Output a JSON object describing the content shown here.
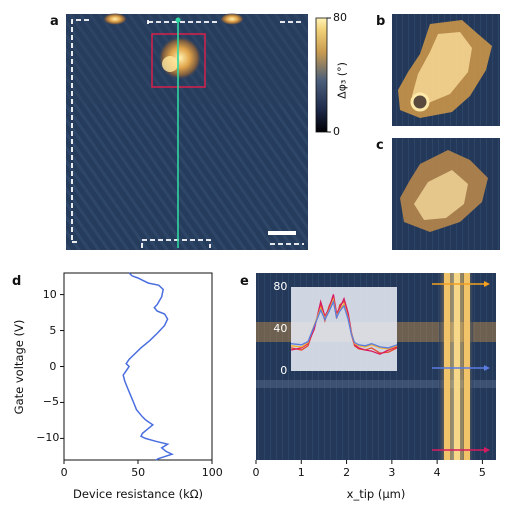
{
  "panels": {
    "a": "a",
    "b": "b",
    "c": "c",
    "d": "d",
    "e": "e"
  },
  "colorbar": {
    "max_label": "80",
    "min_label": "0",
    "label": "Δφ₃ (°)"
  },
  "chart_data": [
    {
      "panel": "d",
      "type": "line",
      "xlabel": "Device resistance (kΩ)",
      "ylabel": "Gate voltage (V)",
      "xlim": [
        0,
        100
      ],
      "ylim": [
        -13,
        13
      ],
      "xticks": [
        "0",
        "50",
        "100"
      ],
      "yticks": [
        "10",
        "5",
        "0",
        "−5",
        "−10"
      ],
      "color": "#4a6ee0",
      "series": [
        {
          "x": [
            44,
            46,
            50,
            53,
            57,
            64,
            67,
            66,
            63,
            61,
            63,
            68,
            70,
            68,
            63,
            58,
            52,
            47,
            44,
            42,
            44,
            42,
            40,
            41,
            43,
            45,
            47,
            49,
            51,
            53,
            55,
            57,
            60,
            57,
            53,
            52,
            55,
            62,
            70,
            66,
            69,
            73,
            67,
            64,
            62
          ],
          "y": [
            13,
            12.6,
            12.3,
            12,
            11.6,
            11.3,
            10.7,
            9.7,
            8.6,
            8.2,
            7.7,
            7.3,
            6.6,
            5.7,
            4.6,
            3.6,
            2.6,
            1.6,
            1.0,
            0.4,
            0,
            -0.6,
            -1.2,
            -2,
            -3,
            -4,
            -5,
            -6,
            -6.5,
            -7.0,
            -7.4,
            -7.7,
            -8.1,
            -8.6,
            -9.3,
            -9.7,
            -10.0,
            -10.4,
            -10.8,
            -11.3,
            -11.8,
            -12.2,
            -12.6,
            -12.8,
            -13
          ]
        }
      ]
    },
    {
      "panel": "e",
      "type": "line",
      "xlabel": "x_tip (μm)",
      "xlim": [
        0,
        5.3
      ],
      "xticks": [
        "0",
        "1",
        "2",
        "3",
        "4",
        "5"
      ],
      "inset": {
        "ylim": [
          0,
          80
        ],
        "yticks": [
          "80",
          "40",
          "0"
        ],
        "series": [
          {
            "name": "",
            "color": "#e64a2e",
            "x": [
              0,
              0.5,
              0.8,
              1.1,
              1.4,
              1.6,
              1.8,
              2.0,
              2.15,
              2.3,
              2.5,
              2.7,
              2.85,
              3.0,
              3.2,
              3.5,
              3.8,
              4.2,
              4.6,
              5.0
            ],
            "y": [
              22,
              20,
              24,
              42,
              62,
              48,
              62,
              70,
              50,
              63,
              66,
              52,
              35,
              24,
              21,
              20,
              22,
              17,
              18,
              22
            ]
          },
          {
            "name": "",
            "color": "#d81b60",
            "x": [
              0,
              0.5,
              0.8,
              1.1,
              1.4,
              1.6,
              1.8,
              2.0,
              2.15,
              2.3,
              2.5,
              2.7,
              2.85,
              3.0,
              3.2,
              3.5,
              3.8,
              4.2,
              4.6,
              5.0
            ],
            "y": [
              20,
              22,
              26,
              40,
              66,
              52,
              60,
              73,
              55,
              60,
              69,
              55,
              37,
              25,
              22,
              20,
              19,
              16,
              20,
              23
            ]
          },
          {
            "name": "",
            "color": "#f4b030",
            "x": [
              0,
              0.5,
              0.8,
              1.1,
              1.4,
              1.6,
              1.8,
              2.0,
              2.15,
              2.3,
              2.5,
              2.7,
              2.85,
              3.0,
              3.2,
              3.5,
              3.8,
              4.2,
              4.6,
              5.0
            ],
            "y": [
              24,
              23,
              27,
              44,
              60,
              50,
              58,
              68,
              52,
              58,
              64,
              50,
              36,
              26,
              24,
              23,
              25,
              22,
              21,
              24
            ]
          },
          {
            "name": "",
            "color": "#5a7be0",
            "x": [
              0,
              0.5,
              0.8,
              1.1,
              1.4,
              1.6,
              1.8,
              2.0,
              2.15,
              2.3,
              2.5,
              2.7,
              2.85,
              3.0,
              3.2,
              3.5,
              3.8,
              4.2,
              4.6,
              5.0
            ],
            "y": [
              26,
              25,
              28,
              43,
              58,
              49,
              57,
              66,
              51,
              57,
              62,
              49,
              35,
              27,
              25,
              24,
              26,
              23,
              22,
              25
            ]
          }
        ]
      },
      "arrows": [
        {
          "color": "#f4a020",
          "row": "top"
        },
        {
          "color": "#5a7be0",
          "row": "middle"
        },
        {
          "color": "#d81b60",
          "row": "bottom"
        }
      ]
    }
  ]
}
